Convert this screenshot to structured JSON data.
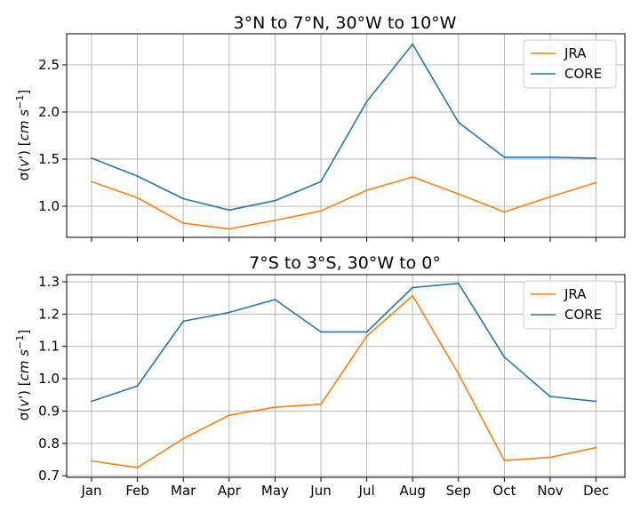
{
  "chart_data": [
    {
      "type": "line",
      "title": "3°N to 7°N, 30°W to 10°W",
      "ylabel": "σ(v') [cm s⁻¹]",
      "xlabel": "",
      "categories": [
        "Jan",
        "Feb",
        "Mar",
        "Apr",
        "May",
        "Jun",
        "Jul",
        "Aug",
        "Sep",
        "Oct",
        "Nov",
        "Dec"
      ],
      "show_xtick_labels": false,
      "ylim": [
        0.67,
        2.83
      ],
      "yticks": [
        1.0,
        1.5,
        2.0,
        2.5
      ],
      "ytick_labels": [
        "1.0",
        "1.5",
        "2.0",
        "2.5"
      ],
      "grid": true,
      "legend_placement": "upper right",
      "series": [
        {
          "name": "JRA",
          "color": "#ff7f0e",
          "values": [
            1.26,
            1.09,
            0.82,
            0.76,
            0.85,
            0.95,
            1.17,
            1.31,
            1.13,
            0.94,
            1.1,
            1.25
          ]
        },
        {
          "name": "CORE",
          "color": "#1f77b4",
          "values": [
            1.51,
            1.32,
            1.08,
            0.96,
            1.06,
            1.26,
            2.11,
            2.72,
            1.89,
            1.52,
            1.52,
            1.51
          ]
        }
      ]
    },
    {
      "type": "line",
      "title": "7°S to 3°S, 30°W to 0°",
      "ylabel": "σ(v') [cm s⁻¹]",
      "xlabel": "",
      "categories": [
        "Jan",
        "Feb",
        "Mar",
        "Apr",
        "May",
        "Jun",
        "Jul",
        "Aug",
        "Sep",
        "Oct",
        "Nov",
        "Dec"
      ],
      "show_xtick_labels": true,
      "ylim": [
        0.695,
        1.322
      ],
      "yticks": [
        0.7,
        0.8,
        0.9,
        1.0,
        1.1,
        1.2,
        1.3
      ],
      "ytick_labels": [
        "0.7",
        "0.8",
        "0.9",
        "1.0",
        "1.1",
        "1.2",
        "1.3"
      ],
      "grid": true,
      "legend_placement": "upper right",
      "series": [
        {
          "name": "JRA",
          "color": "#ff7f0e",
          "values": [
            0.746,
            0.725,
            0.815,
            0.887,
            0.912,
            0.921,
            1.132,
            1.257,
            1.015,
            0.747,
            0.757,
            0.787
          ]
        },
        {
          "name": "CORE",
          "color": "#1f77b4",
          "values": [
            0.93,
            0.978,
            1.178,
            1.205,
            1.245,
            1.145,
            1.145,
            1.282,
            1.295,
            1.067,
            0.945,
            0.93
          ]
        }
      ]
    }
  ]
}
